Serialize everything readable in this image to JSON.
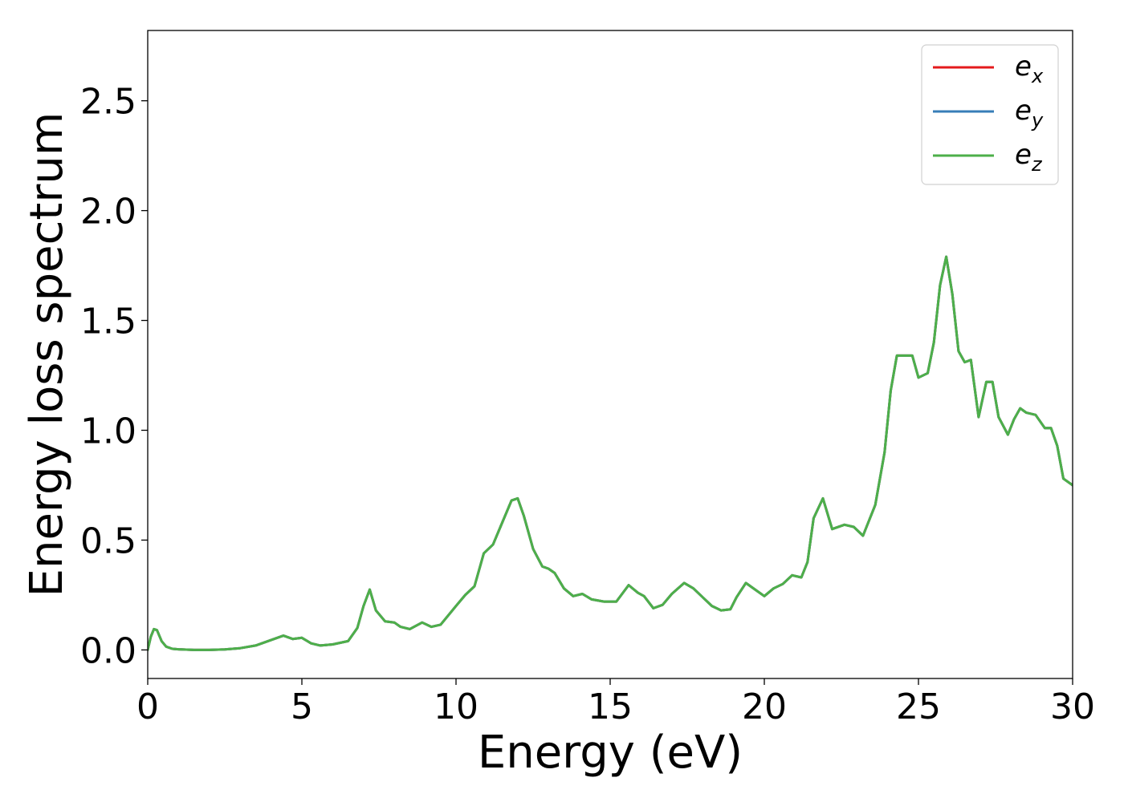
{
  "chart_data": {
    "type": "line",
    "title": "",
    "xlabel": "Energy (eV)",
    "ylabel": "Energy loss spectrum",
    "xlim": [
      0,
      30
    ],
    "ylim": [
      -0.13,
      2.82
    ],
    "xticks": [
      0,
      5,
      10,
      15,
      20,
      25,
      30
    ],
    "xtick_labels": [
      "0",
      "5",
      "10",
      "15",
      "20",
      "25",
      "30"
    ],
    "yticks": [
      0.0,
      0.5,
      1.0,
      1.5,
      2.0,
      2.5
    ],
    "ytick_labels": [
      "0.0",
      "0.5",
      "1.0",
      "1.5",
      "2.0",
      "2.5"
    ],
    "grid": false,
    "legend_position": "top-right",
    "series": [
      {
        "name": "e_x",
        "legend_base": "e",
        "legend_sub": "x",
        "color": "#e41a1c",
        "x": [
          0.0,
          0.1,
          0.2,
          0.3,
          0.45,
          0.6,
          0.8,
          1.0,
          1.5,
          2.0,
          2.5,
          3.0,
          3.5,
          4.0,
          4.4,
          4.7,
          5.0,
          5.3,
          5.6,
          6.0,
          6.5,
          6.8,
          7.0,
          7.2,
          7.4,
          7.7,
          8.0,
          8.2,
          8.5,
          8.9,
          9.2,
          9.5,
          10.0,
          10.3,
          10.6,
          10.9,
          11.2,
          11.5,
          11.8,
          12.0,
          12.2,
          12.5,
          12.8,
          13.0,
          13.2,
          13.5,
          13.8,
          14.1,
          14.4,
          14.8,
          15.2,
          15.6,
          15.9,
          16.1,
          16.4,
          16.7,
          17.0,
          17.4,
          17.7,
          18.0,
          18.3,
          18.6,
          18.9,
          19.1,
          19.4,
          19.7,
          20.0,
          20.3,
          20.6,
          20.9,
          21.2,
          21.4,
          21.6,
          21.9,
          22.2,
          22.6,
          22.9,
          23.2,
          23.6,
          23.9,
          24.1,
          24.3,
          24.6,
          24.8,
          25.0,
          25.3,
          25.5,
          25.7,
          25.9,
          26.1,
          26.3,
          26.5,
          26.7,
          26.95,
          27.2,
          27.4,
          27.6,
          27.9,
          28.1,
          28.3,
          28.5,
          28.8,
          29.1,
          29.3,
          29.5,
          29.7,
          30.0
        ],
        "y": [
          0.0,
          0.06,
          0.095,
          0.09,
          0.04,
          0.015,
          0.005,
          0.003,
          0.0,
          0.0,
          0.002,
          0.008,
          0.02,
          0.045,
          0.065,
          0.05,
          0.055,
          0.03,
          0.02,
          0.025,
          0.04,
          0.1,
          0.2,
          0.275,
          0.18,
          0.13,
          0.125,
          0.105,
          0.095,
          0.125,
          0.105,
          0.115,
          0.2,
          0.25,
          0.29,
          0.44,
          0.48,
          0.58,
          0.68,
          0.69,
          0.61,
          0.46,
          0.38,
          0.37,
          0.35,
          0.28,
          0.245,
          0.255,
          0.23,
          0.22,
          0.22,
          0.295,
          0.26,
          0.245,
          0.19,
          0.205,
          0.255,
          0.305,
          0.28,
          0.24,
          0.2,
          0.18,
          0.185,
          0.24,
          0.305,
          0.275,
          0.245,
          0.28,
          0.3,
          0.34,
          0.33,
          0.4,
          0.6,
          0.69,
          0.55,
          0.57,
          0.56,
          0.52,
          0.66,
          0.9,
          1.18,
          1.34,
          1.34,
          1.34,
          1.24,
          1.26,
          1.4,
          1.66,
          1.79,
          1.62,
          1.36,
          1.31,
          1.32,
          1.06,
          1.22,
          1.22,
          1.06,
          0.98,
          1.05,
          1.1,
          1.08,
          1.07,
          1.01,
          1.01,
          0.93,
          0.78,
          0.75
        ]
      },
      {
        "name": "e_y",
        "legend_base": "e",
        "legend_sub": "y",
        "color": "#377eb8",
        "x": [
          0.0,
          0.1,
          0.2,
          0.3,
          0.45,
          0.6,
          0.8,
          1.0,
          1.5,
          2.0,
          2.5,
          3.0,
          3.5,
          4.0,
          4.4,
          4.7,
          5.0,
          5.3,
          5.6,
          6.0,
          6.5,
          6.8,
          7.0,
          7.2,
          7.4,
          7.7,
          8.0,
          8.2,
          8.5,
          8.9,
          9.2,
          9.5,
          10.0,
          10.3,
          10.6,
          10.9,
          11.2,
          11.5,
          11.8,
          12.0,
          12.2,
          12.5,
          12.8,
          13.0,
          13.2,
          13.5,
          13.8,
          14.1,
          14.4,
          14.8,
          15.2,
          15.6,
          15.9,
          16.1,
          16.4,
          16.7,
          17.0,
          17.4,
          17.7,
          18.0,
          18.3,
          18.6,
          18.9,
          19.1,
          19.4,
          19.7,
          20.0,
          20.3,
          20.6,
          20.9,
          21.2,
          21.4,
          21.6,
          21.9,
          22.2,
          22.6,
          22.9,
          23.2,
          23.6,
          23.9,
          24.1,
          24.3,
          24.6,
          24.8,
          25.0,
          25.3,
          25.5,
          25.7,
          25.9,
          26.1,
          26.3,
          26.5,
          26.7,
          26.95,
          27.2,
          27.4,
          27.6,
          27.9,
          28.1,
          28.3,
          28.5,
          28.8,
          29.1,
          29.3,
          29.5,
          29.7,
          30.0
        ],
        "y": [
          0.0,
          0.06,
          0.095,
          0.09,
          0.04,
          0.015,
          0.005,
          0.003,
          0.0,
          0.0,
          0.002,
          0.008,
          0.02,
          0.045,
          0.065,
          0.05,
          0.055,
          0.03,
          0.02,
          0.025,
          0.04,
          0.1,
          0.2,
          0.275,
          0.18,
          0.13,
          0.125,
          0.105,
          0.095,
          0.125,
          0.105,
          0.115,
          0.2,
          0.25,
          0.29,
          0.44,
          0.48,
          0.58,
          0.68,
          0.69,
          0.61,
          0.46,
          0.38,
          0.37,
          0.35,
          0.28,
          0.245,
          0.255,
          0.23,
          0.22,
          0.22,
          0.295,
          0.26,
          0.245,
          0.19,
          0.205,
          0.255,
          0.305,
          0.28,
          0.24,
          0.2,
          0.18,
          0.185,
          0.24,
          0.305,
          0.275,
          0.245,
          0.28,
          0.3,
          0.34,
          0.33,
          0.4,
          0.6,
          0.69,
          0.55,
          0.57,
          0.56,
          0.52,
          0.66,
          0.9,
          1.18,
          1.34,
          1.34,
          1.34,
          1.24,
          1.26,
          1.4,
          1.66,
          1.79,
          1.62,
          1.36,
          1.31,
          1.32,
          1.06,
          1.22,
          1.22,
          1.06,
          0.98,
          1.05,
          1.1,
          1.08,
          1.07,
          1.01,
          1.01,
          0.93,
          0.78,
          0.75
        ]
      },
      {
        "name": "e_z",
        "legend_base": "e",
        "legend_sub": "z",
        "color": "#4daf4a",
        "x": [
          0.0,
          0.1,
          0.2,
          0.3,
          0.45,
          0.6,
          0.8,
          1.0,
          1.5,
          2.0,
          2.5,
          3.0,
          3.5,
          4.0,
          4.4,
          4.7,
          5.0,
          5.3,
          5.6,
          6.0,
          6.5,
          6.8,
          7.0,
          7.2,
          7.4,
          7.7,
          8.0,
          8.2,
          8.5,
          8.9,
          9.2,
          9.5,
          10.0,
          10.3,
          10.6,
          10.9,
          11.2,
          11.5,
          11.8,
          12.0,
          12.2,
          12.5,
          12.8,
          13.0,
          13.2,
          13.5,
          13.8,
          14.1,
          14.4,
          14.8,
          15.2,
          15.6,
          15.9,
          16.1,
          16.4,
          16.7,
          17.0,
          17.4,
          17.7,
          18.0,
          18.3,
          18.6,
          18.9,
          19.1,
          19.4,
          19.7,
          20.0,
          20.3,
          20.6,
          20.9,
          21.2,
          21.4,
          21.6,
          21.9,
          22.2,
          22.6,
          22.9,
          23.2,
          23.6,
          23.9,
          24.1,
          24.3,
          24.6,
          24.8,
          25.0,
          25.3,
          25.5,
          25.7,
          25.9,
          26.1,
          26.3,
          26.5,
          26.7,
          26.95,
          27.2,
          27.4,
          27.6,
          27.9,
          28.1,
          28.3,
          28.5,
          28.8,
          29.1,
          29.3,
          29.5,
          29.7,
          30.0
        ],
        "y": [
          0.0,
          0.06,
          0.095,
          0.09,
          0.04,
          0.015,
          0.005,
          0.003,
          0.0,
          0.0,
          0.002,
          0.008,
          0.02,
          0.045,
          0.065,
          0.05,
          0.055,
          0.03,
          0.02,
          0.025,
          0.04,
          0.1,
          0.2,
          0.275,
          0.18,
          0.13,
          0.125,
          0.105,
          0.095,
          0.125,
          0.105,
          0.115,
          0.2,
          0.25,
          0.29,
          0.44,
          0.48,
          0.58,
          0.68,
          0.69,
          0.61,
          0.46,
          0.38,
          0.37,
          0.35,
          0.28,
          0.245,
          0.255,
          0.23,
          0.22,
          0.22,
          0.295,
          0.26,
          0.245,
          0.19,
          0.205,
          0.255,
          0.305,
          0.28,
          0.24,
          0.2,
          0.18,
          0.185,
          0.24,
          0.305,
          0.275,
          0.245,
          0.28,
          0.3,
          0.34,
          0.33,
          0.4,
          0.6,
          0.69,
          0.55,
          0.57,
          0.56,
          0.52,
          0.66,
          0.9,
          1.18,
          1.34,
          1.34,
          1.34,
          1.24,
          1.26,
          1.4,
          1.66,
          1.79,
          1.62,
          1.36,
          1.31,
          1.32,
          1.06,
          1.22,
          1.22,
          1.06,
          0.98,
          1.05,
          1.1,
          1.08,
          1.07,
          1.01,
          1.01,
          0.93,
          0.78,
          0.75
        ]
      }
    ]
  }
}
